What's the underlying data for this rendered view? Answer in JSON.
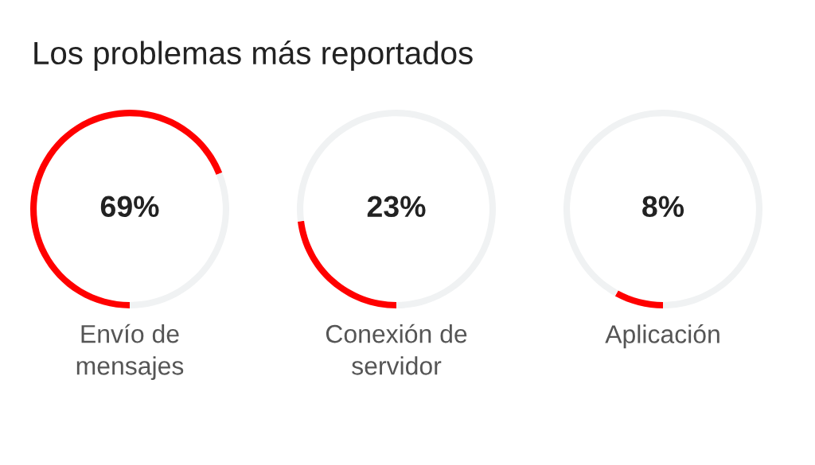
{
  "chart_data": [
    {
      "type": "donut",
      "title": "Los problemas más reportados",
      "categories": [
        "Envío de\nmensajes",
        null
      ],
      "values": [
        69,
        31
      ],
      "colors": [
        "#ff0000",
        "#f0f2f3"
      ],
      "annotations": [
        "69%"
      ]
    },
    {
      "type": "donut",
      "categories": [
        "Conexión de\nservidor",
        null
      ],
      "values": [
        23,
        77
      ],
      "colors": [
        "#ff0000",
        "#f0f2f3"
      ],
      "annotations": [
        "23%"
      ]
    },
    {
      "type": "donut",
      "categories": [
        "Aplicación",
        null
      ],
      "values": [
        8,
        92
      ],
      "colors": [
        "#ff0000",
        "#f0f2f3"
      ],
      "annotations": [
        "8%"
      ]
    }
  ]
}
